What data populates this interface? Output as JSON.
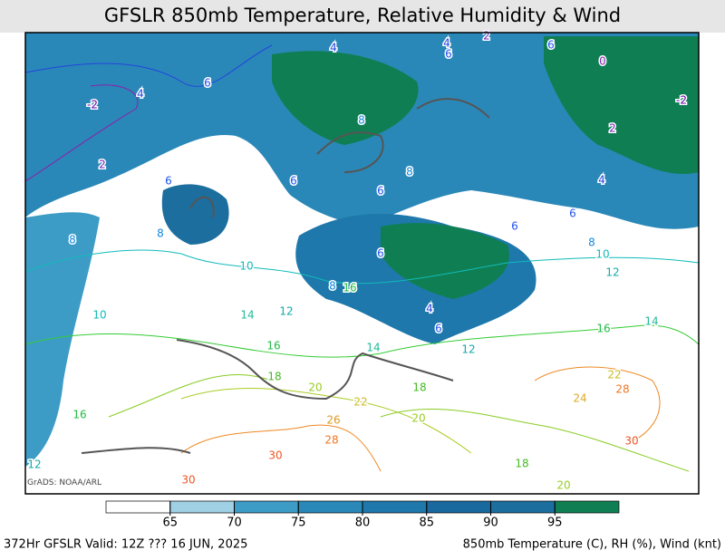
{
  "header": {
    "title": "GFSLR 850mb Temperature, Relative Humidity & Wind"
  },
  "map": {
    "contour_labels": [
      "4",
      "4",
      "2",
      "6",
      "6",
      "0",
      "-2",
      "4",
      "6",
      "-2",
      "2",
      "8",
      "2",
      "6",
      "6",
      "8",
      "4",
      "6",
      "8",
      "6",
      "6",
      "8",
      "8",
      "6",
      "10",
      "12",
      "10",
      "8",
      "16",
      "10",
      "14",
      "12",
      "4",
      "6",
      "16",
      "14",
      "16",
      "14",
      "12",
      "18",
      "20",
      "22",
      "22",
      "28",
      "24",
      "18",
      "20",
      "16",
      "26",
      "28",
      "30",
      "30",
      "18",
      "12",
      "30",
      "20"
    ],
    "credit": "GrADS: NOAA/ARL"
  },
  "colorbar": {
    "ticks": [
      65,
      70,
      75,
      80,
      85,
      90,
      95
    ],
    "colors": [
      "#ffffff",
      "#9fd0e4",
      "#3d9cc6",
      "#2a88b8",
      "#1e78ab",
      "#19699e",
      "#1c6e9e",
      "#0f7f53"
    ]
  },
  "footer": {
    "left": "372Hr GFSLR Valid: 12Z ??? 16 JUN, 2025",
    "right": "850mb Temperature (C), RH (%), Wind (knt)"
  }
}
